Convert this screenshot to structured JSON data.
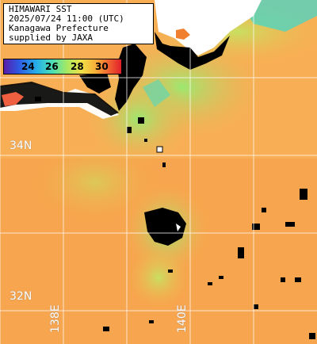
{
  "title_lines": [
    "HIMAWARI SST",
    "2025/07/24 11:00 (UTC)",
    "Kanagawa Prefecture",
    "supplied by JAXA"
  ],
  "legend": {
    "ticks": [
      "24",
      "26",
      "28",
      "30"
    ]
  },
  "grid_labels": {
    "lat": [
      "34N",
      "32N"
    ],
    "lon": [
      "138E",
      "140E"
    ]
  },
  "colors": {
    "ocean_warm": "#f8a850",
    "ocean_cool": "#a8e860",
    "land": "#000000",
    "cloud": "#ffffff",
    "grid": "#ffffff"
  }
}
